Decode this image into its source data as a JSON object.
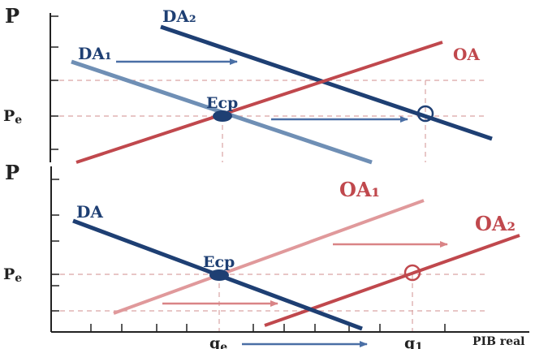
{
  "top": {
    "y_axis_label": "P",
    "price_label": "Pe",
    "curve_da1": "DA₁",
    "curve_da2": "DA₂",
    "curve_oa": "OA",
    "point_label": "Ecp"
  },
  "bottom": {
    "y_axis_label": "P",
    "price_label": "Pe",
    "curve_da": "DA",
    "curve_oa1": "OA₁",
    "curve_oa2": "OA₂",
    "point_label": "Ecp",
    "x_label_qe": "qe",
    "x_label_q1": "q1",
    "x_axis_label": "PIB real"
  },
  "colors": {
    "demand_dark": "#1e3f73",
    "demand_light": "#6f8fb5",
    "supply_dark": "#c0484d",
    "supply_light": "#e0999b",
    "arrow_blue": "#4a6fa5",
    "arrow_red": "#d98486",
    "guide": "#d9a3a3",
    "axis": "#222222"
  }
}
